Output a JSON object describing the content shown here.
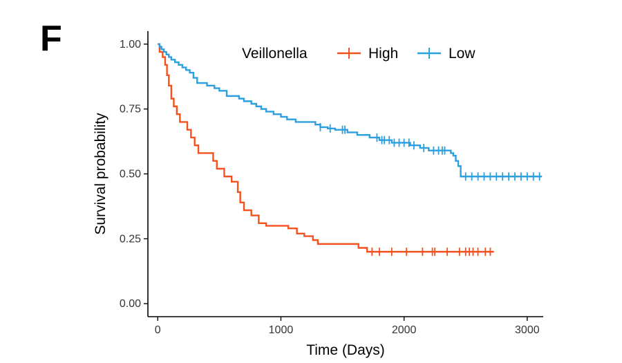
{
  "panel_label": "F",
  "chart_data": {
    "type": "line",
    "title": "",
    "xlabel": "Time (Days)",
    "ylabel": "Survival probability",
    "xlim": [
      -80,
      3130
    ],
    "ylim": [
      -0.05,
      1.05
    ],
    "x_ticks": [
      0,
      1000,
      2000,
      3000
    ],
    "x_tick_labels": [
      "0",
      "1000",
      "2000",
      "3000"
    ],
    "y_ticks": [
      0.0,
      0.25,
      0.5,
      0.75,
      1.0
    ],
    "y_tick_labels": [
      "0.00",
      "0.25",
      "0.50",
      "0.75",
      "1.00"
    ],
    "grid": false,
    "legend": {
      "title": "Veillonella",
      "placement": "top",
      "entries": [
        "High",
        "Low"
      ]
    },
    "series": [
      {
        "name": "High",
        "color": "#f4511e",
        "steps": [
          [
            0,
            1.0
          ],
          [
            15,
            0.97
          ],
          [
            40,
            0.95
          ],
          [
            60,
            0.92
          ],
          [
            75,
            0.88
          ],
          [
            90,
            0.84
          ],
          [
            110,
            0.79
          ],
          [
            130,
            0.76
          ],
          [
            155,
            0.73
          ],
          [
            180,
            0.7
          ],
          [
            240,
            0.67
          ],
          [
            270,
            0.64
          ],
          [
            300,
            0.61
          ],
          [
            330,
            0.58
          ],
          [
            450,
            0.55
          ],
          [
            480,
            0.52
          ],
          [
            540,
            0.49
          ],
          [
            600,
            0.47
          ],
          [
            650,
            0.43
          ],
          [
            670,
            0.39
          ],
          [
            700,
            0.36
          ],
          [
            760,
            0.34
          ],
          [
            820,
            0.31
          ],
          [
            880,
            0.3
          ],
          [
            1060,
            0.29
          ],
          [
            1130,
            0.27
          ],
          [
            1190,
            0.26
          ],
          [
            1260,
            0.245
          ],
          [
            1300,
            0.23
          ],
          [
            1630,
            0.215
          ],
          [
            1700,
            0.2
          ],
          [
            2730,
            0.2
          ]
        ],
        "censor_x": [
          1740,
          1800,
          1900,
          2020,
          2150,
          2230,
          2250,
          2350,
          2450,
          2500,
          2530,
          2560,
          2600,
          2660,
          2700
        ]
      },
      {
        "name": "Low",
        "color": "#2c9fe0",
        "steps": [
          [
            0,
            1.0
          ],
          [
            15,
            0.99
          ],
          [
            30,
            0.98
          ],
          [
            50,
            0.97
          ],
          [
            70,
            0.96
          ],
          [
            90,
            0.95
          ],
          [
            110,
            0.94
          ],
          [
            140,
            0.93
          ],
          [
            170,
            0.92
          ],
          [
            200,
            0.91
          ],
          [
            230,
            0.9
          ],
          [
            260,
            0.89
          ],
          [
            290,
            0.87
          ],
          [
            320,
            0.85
          ],
          [
            400,
            0.84
          ],
          [
            460,
            0.83
          ],
          [
            500,
            0.82
          ],
          [
            560,
            0.8
          ],
          [
            660,
            0.79
          ],
          [
            700,
            0.78
          ],
          [
            760,
            0.77
          ],
          [
            800,
            0.76
          ],
          [
            840,
            0.75
          ],
          [
            880,
            0.74
          ],
          [
            940,
            0.73
          ],
          [
            1000,
            0.72
          ],
          [
            1050,
            0.71
          ],
          [
            1120,
            0.7
          ],
          [
            1280,
            0.69
          ],
          [
            1320,
            0.68
          ],
          [
            1380,
            0.675
          ],
          [
            1440,
            0.67
          ],
          [
            1540,
            0.66
          ],
          [
            1620,
            0.65
          ],
          [
            1720,
            0.64
          ],
          [
            1800,
            0.63
          ],
          [
            1900,
            0.62
          ],
          [
            2050,
            0.61
          ],
          [
            2130,
            0.6
          ],
          [
            2200,
            0.59
          ],
          [
            2380,
            0.58
          ],
          [
            2400,
            0.57
          ],
          [
            2420,
            0.55
          ],
          [
            2440,
            0.53
          ],
          [
            2460,
            0.49
          ],
          [
            3120,
            0.49
          ]
        ],
        "censor_x": [
          1320,
          1400,
          1500,
          1520,
          1780,
          1820,
          1840,
          1880,
          1920,
          1960,
          2000,
          2040,
          2080,
          2160,
          2240,
          2280,
          2310,
          2330,
          2500,
          2550,
          2600,
          2650,
          2700,
          2750,
          2800,
          2850,
          2900,
          2950,
          3000,
          3050,
          3100
        ]
      }
    ]
  }
}
